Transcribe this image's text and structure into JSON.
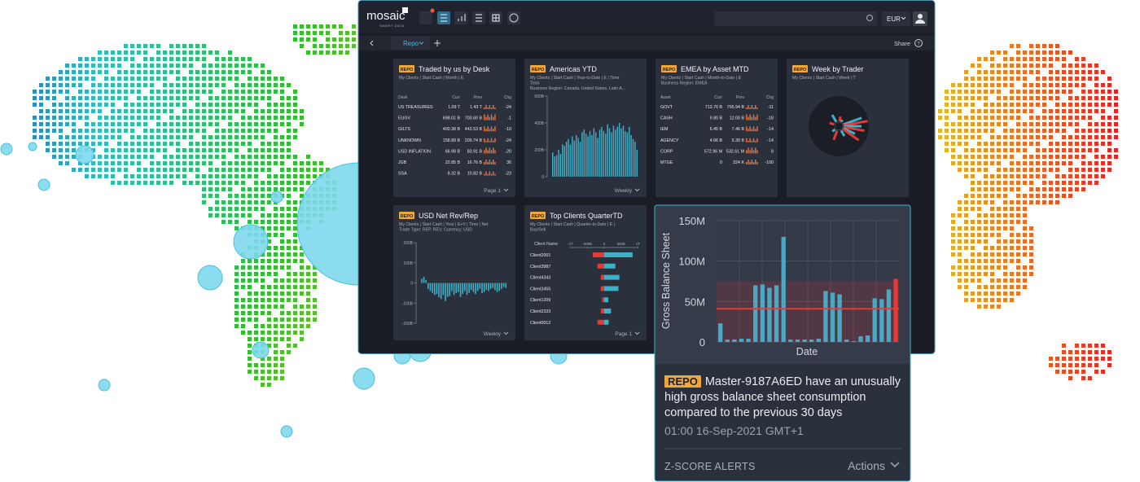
{
  "header": {
    "logo": "mosaic",
    "tagline": "SMART DATA",
    "currency": "EUR",
    "tab": "Repo",
    "share": "Share"
  },
  "widgets": [
    {
      "type": "table",
      "tag": "REPO",
      "title": "Traded by us by Desk",
      "filters": [
        "My Clients | Start Cash | Month | E"
      ],
      "columns": [
        "Desk",
        "Curr",
        "Prev",
        "Chg"
      ],
      "rows": [
        [
          "US TREASURIES",
          "1.09 T",
          "1.43 T",
          -24
        ],
        [
          "EUGV",
          "698.01 B",
          "703.60 B",
          -1
        ],
        [
          "GILTS",
          "400.38 B",
          "442.53 B",
          -10
        ],
        [
          "UNKNOWN",
          "158.89 B",
          "209.74 B",
          -24
        ],
        [
          "USD INFLATION",
          "66.98 B",
          "83.91 B",
          -20
        ],
        [
          "JGB",
          "22.85 B",
          "16.76 B",
          36
        ],
        [
          "SSA",
          "8.32 B",
          "10.82 B",
          -23
        ]
      ],
      "footer": "Page 1"
    },
    {
      "type": "bar",
      "tag": "REPO",
      "title": "Americas YTD",
      "filters": [
        "My Clients | Start Cash | Year-to-Date | E | Time",
        "Total",
        "Business Region: Canada, United States, Latin A..."
      ],
      "ylim": [
        0,
        600
      ],
      "yticks": [
        {
          "value": 600,
          "label": "600B"
        },
        {
          "value": 400,
          "label": "400B"
        },
        {
          "value": 200,
          "label": "200B"
        },
        0
      ],
      "values": [
        180,
        150,
        160,
        200,
        170,
        240,
        230,
        260,
        280,
        240,
        300,
        270,
        310,
        290,
        260,
        330,
        350,
        320,
        300,
        340,
        310,
        360,
        330,
        290,
        350,
        370,
        340,
        320,
        390,
        360,
        330,
        380,
        350,
        370,
        400,
        360,
        380,
        340,
        330,
        370,
        310,
        280,
        260,
        200
      ],
      "footer": "Weekly"
    },
    {
      "type": "table",
      "tag": "REPO",
      "title": "EMEA by Asset MTD",
      "filters": [
        "My Clients | Start Cash | Month-to-Date | E",
        "Business Region: EMEA"
      ],
      "columns": [
        "Asset",
        "Curr",
        "Prev",
        "Chg"
      ],
      "rows": [
        [
          "GOVT",
          "713.70 B",
          "795.94 B",
          -11
        ],
        [
          "CASH",
          "9.80 B",
          "12.00 B",
          -18
        ],
        [
          "IEM",
          "6.45 B",
          "7.46 B",
          -14
        ],
        [
          "AGENCY",
          "4.66 B",
          "5.39 B",
          -14
        ],
        [
          "CORP",
          "572.96 M",
          "532.61 M",
          8
        ],
        [
          "MTGE",
          "0",
          "324 K",
          -100
        ]
      ]
    },
    {
      "type": "radial",
      "tag": "REPO",
      "title": "Week by Trader",
      "filters": [
        "My Clients | Start Cash | Week | T"
      ]
    },
    {
      "type": "bar",
      "tag": "REPO",
      "title": "USD Net Rev/Rep",
      "filters": [
        "My Clients | Start Cash | Year | E+V | Time | Net",
        "Trade Type: REP, REV; Currency: USD"
      ],
      "ylim": [
        -200,
        200
      ],
      "yticks": [
        {
          "value": 200,
          "label": "200B"
        },
        {
          "value": 100,
          "label": "100B"
        },
        0,
        {
          "value": -100,
          "label": "-100B"
        },
        {
          "value": -200,
          "label": "-200B"
        }
      ],
      "values": [
        20,
        30,
        15,
        -30,
        -40,
        -50,
        -60,
        -55,
        -70,
        -80,
        -60,
        -90,
        -70,
        -65,
        -40,
        -60,
        -50,
        -45,
        -70,
        -55,
        -40,
        -60,
        -50,
        -35,
        -45,
        -55,
        -40,
        -30,
        -50,
        -45,
        -35,
        -40,
        -30,
        -25,
        -35,
        -45,
        -40,
        -30,
        -20,
        -25
      ],
      "footer": "Weekly"
    },
    {
      "type": "diverging",
      "tag": "REPO",
      "title": "Top Clients QuarterTD",
      "filters": [
        "My Clients | Start Cash | Quarter-to-Date | E |",
        "Buy/Sell"
      ],
      "header": "Client Name",
      "xlim": [
        -1000,
        1000
      ],
      "xticks": [
        {
          "value": -1000,
          "label": "-1T"
        },
        {
          "value": -500,
          "label": "-500B"
        },
        0,
        {
          "value": 500,
          "label": "500B"
        },
        {
          "value": 1000,
          "label": "1T"
        }
      ],
      "clients": [
        "Client2001",
        "Client3987",
        "Client4343",
        "Client3455",
        "Client1209",
        "Client2333",
        "Client0012"
      ],
      "series": [
        {
          "color": "#e53935",
          "values": [
            -340,
            -200,
            -100,
            -100,
            -60,
            -100,
            -200
          ]
        },
        {
          "color": "#3fb0c8",
          "values": [
            840,
            330,
            450,
            420,
            120,
            200,
            130
          ]
        }
      ],
      "footer": "Page 1"
    }
  ],
  "alert": {
    "tag": "REPO",
    "message": "Master-9187A6ED have an unusually high gross balance sheet consumption compared to the previous 30 days",
    "time": "01:00 16-Sep-2021 GMT+1",
    "source": "Z-SCORE ALERTS",
    "actions": "Actions",
    "chart": {
      "y_label": "Gross Balance Sheet",
      "x_label": "Date",
      "ylim": [
        0,
        150000000
      ],
      "yticks": [
        0,
        {
          "value": 50000000,
          "label": "50M"
        },
        {
          "value": 100000000,
          "label": "100M"
        },
        {
          "value": 150000000,
          "label": "150M"
        }
      ],
      "values": [
        23000000,
        3000000,
        3000000,
        4000000,
        4000000,
        70000000,
        71000000,
        67000000,
        70000000,
        130000000,
        3000000,
        3000000,
        3000000,
        3000000,
        4000000,
        63000000,
        61000000,
        59000000,
        3000000,
        1000000,
        7000000,
        8000000,
        54000000,
        53000000,
        65000000,
        78000000
      ],
      "bar_colors": [
        "#4aa8c4",
        "#4aa8c4",
        "#4aa8c4",
        "#4aa8c4",
        "#4aa8c4",
        "#4aa8c4",
        "#4aa8c4",
        "#4aa8c4",
        "#4aa8c4",
        "#4aa8c4",
        "#4aa8c4",
        "#4aa8c4",
        "#4aa8c4",
        "#4aa8c4",
        "#4aa8c4",
        "#4aa8c4",
        "#4aa8c4",
        "#4aa8c4",
        "#4aa8c4",
        "#4aa8c4",
        "#4aa8c4",
        "#4aa8c4",
        "#4aa8c4",
        "#4aa8c4",
        "#4aa8c4",
        "#e53935"
      ],
      "band": [
        0,
        75000000
      ],
      "band_color": "#e53935",
      "mean": 41000000,
      "mean_color": "#e53935"
    }
  }
}
